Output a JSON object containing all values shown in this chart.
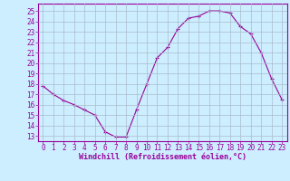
{
  "x": [
    0,
    1,
    2,
    3,
    4,
    5,
    6,
    7,
    8,
    9,
    10,
    11,
    12,
    13,
    14,
    15,
    16,
    17,
    18,
    19,
    20,
    21,
    22,
    23
  ],
  "y": [
    17.8,
    17.0,
    16.4,
    16.0,
    15.5,
    15.0,
    13.4,
    12.9,
    12.9,
    15.5,
    18.0,
    20.5,
    21.5,
    23.3,
    24.3,
    24.5,
    25.0,
    25.0,
    24.8,
    23.5,
    22.8,
    21.0,
    18.5,
    16.5
  ],
  "line_color": "#990099",
  "marker": "+",
  "bg_color": "#cceeff",
  "grid_color": "#aabbcc",
  "xlabel": "Windchill (Refroidissement éolien,°C)",
  "xlabel_color": "#990099",
  "tick_color": "#990099",
  "ylim": [
    12.5,
    25.7
  ],
  "xlim": [
    -0.5,
    23.5
  ],
  "yticks": [
    13,
    14,
    15,
    16,
    17,
    18,
    19,
    20,
    21,
    22,
    23,
    24,
    25
  ],
  "xticks": [
    0,
    1,
    2,
    3,
    4,
    5,
    6,
    7,
    8,
    9,
    10,
    11,
    12,
    13,
    14,
    15,
    16,
    17,
    18,
    19,
    20,
    21,
    22,
    23
  ],
  "xtick_labels": [
    "0",
    "1",
    "2",
    "3",
    "4",
    "5",
    "6",
    "7",
    "8",
    "9",
    "10",
    "11",
    "12",
    "13",
    "14",
    "15",
    "16",
    "17",
    "18",
    "19",
    "20",
    "21",
    "22",
    "23"
  ]
}
